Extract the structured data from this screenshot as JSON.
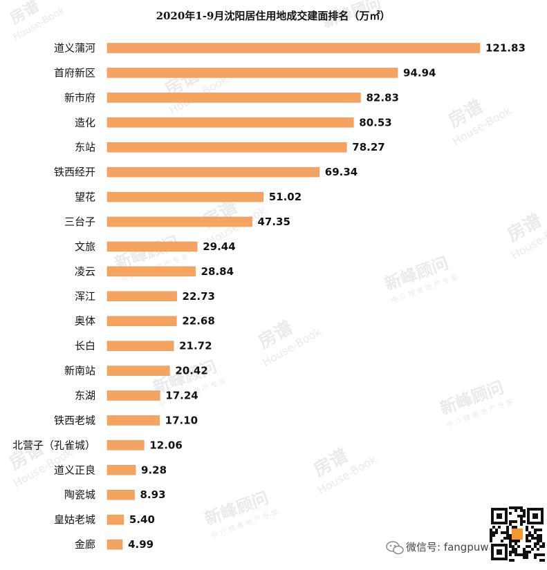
{
  "chart_data": {
    "type": "bar",
    "orientation": "horizontal",
    "title": "2020年1-9月沈阳居住用地成交建面排名（万㎡）",
    "categories": [
      "道义蒲河",
      "首府新区",
      "新市府",
      "造化",
      "东站",
      "铁西经开",
      "望花",
      "三台子",
      "文旅",
      "凌云",
      "浑江",
      "奥体",
      "长白",
      "新南站",
      "东湖",
      "铁西老城",
      "北营子（孔雀城）",
      "道义正良",
      "陶瓷城",
      "皇姑老城",
      "金廊"
    ],
    "values": [
      121.83,
      94.94,
      82.83,
      80.53,
      78.27,
      69.34,
      51.02,
      47.35,
      29.44,
      28.84,
      22.73,
      22.68,
      21.72,
      20.42,
      17.24,
      17.1,
      12.06,
      9.28,
      8.93,
      5.4,
      4.99
    ],
    "value_labels": [
      "121.83",
      "94.94",
      "82.83",
      "80.53",
      "78.27",
      "69.34",
      "51.02",
      "47.35",
      "29.44",
      "28.84",
      "22.73",
      "22.68",
      "21.72",
      "20.42",
      "17.24",
      "17.10",
      "12.06",
      "9.28",
      "8.93",
      "5.40",
      "4.99"
    ],
    "xlim": [
      0,
      121.83
    ],
    "bar_color": "#f4a460",
    "bar_stroke": "#e8924a",
    "grid": false,
    "legend": "none"
  },
  "watermarks": {
    "brand_a": "房谱",
    "brand_a_sub": "House-Book",
    "brand_b": "新峰顾问",
    "brand_b_sub": "中 介 搜 者   地 产 专 家"
  },
  "footer": {
    "wechat_icon": "wechat-icon",
    "text": "微信号: fangpuwang",
    "qr_icon": "qr-code-icon"
  }
}
